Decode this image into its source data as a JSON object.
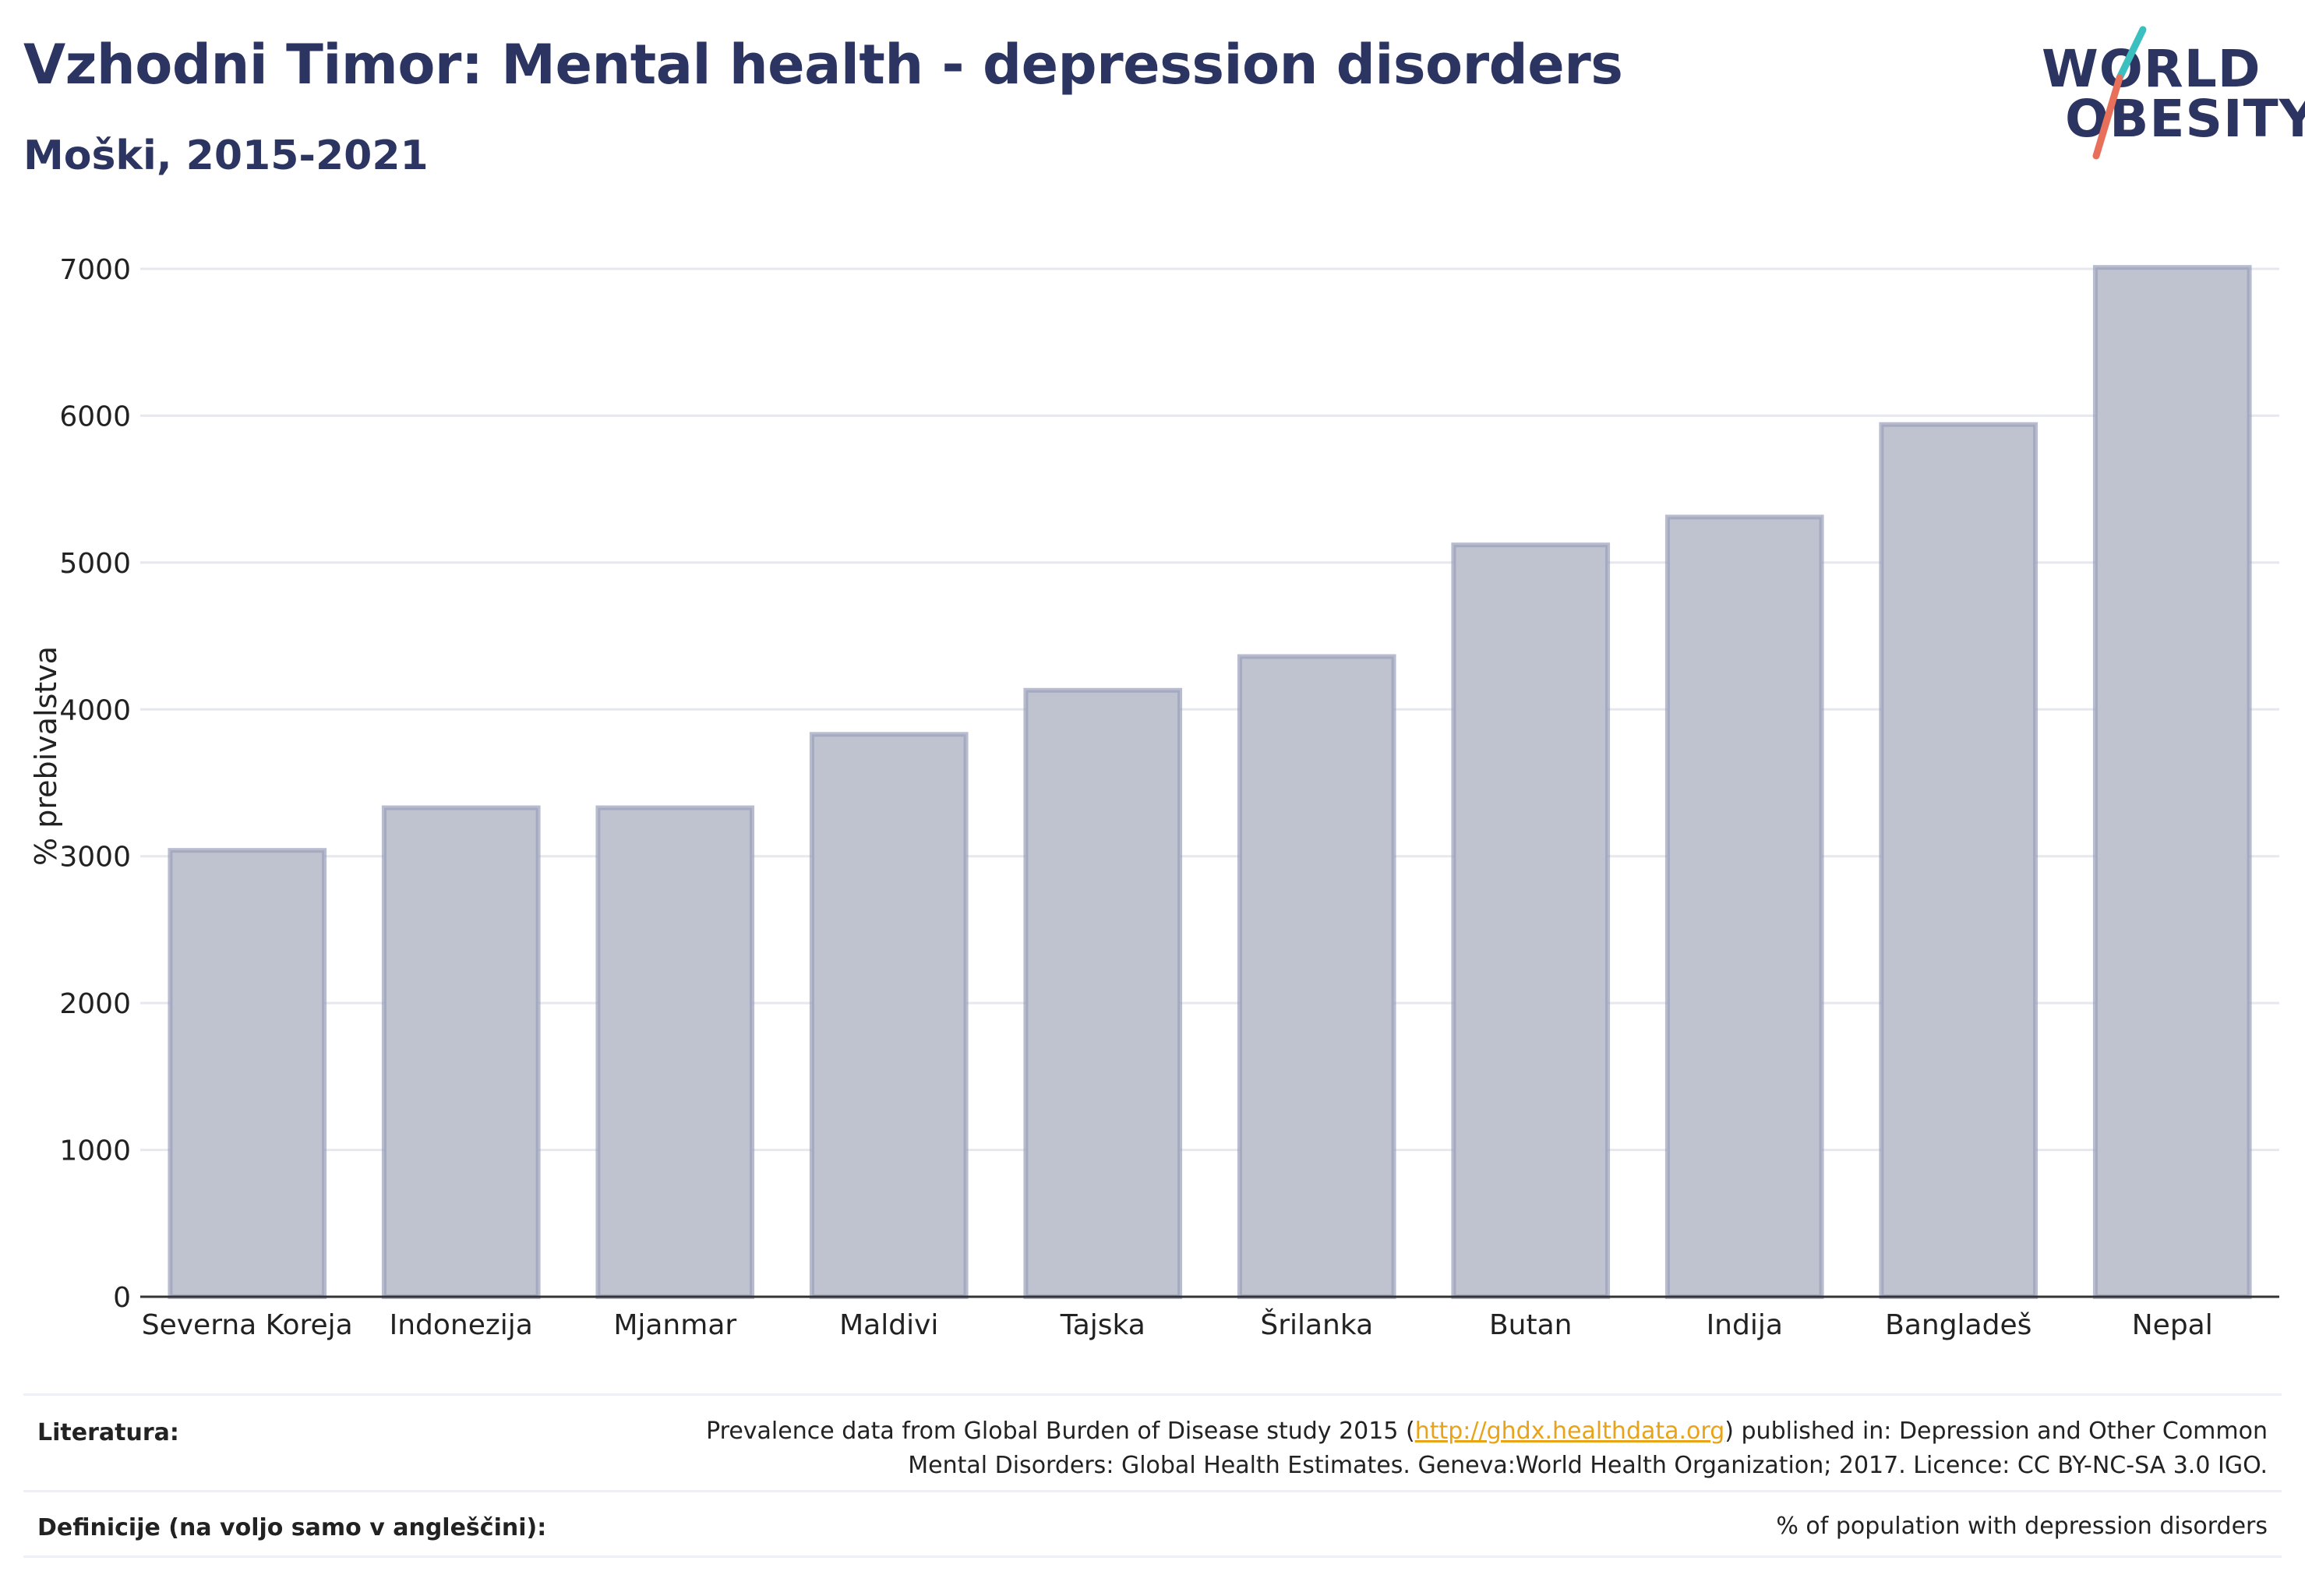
{
  "header": {
    "title": "Vzhodni Timor: Mental health - depression disorders",
    "subtitle": "Moški, 2015-2021"
  },
  "logo": {
    "line1": "WORLD",
    "line2": "OBESITY",
    "accent_colors": [
      "#3cbfbf",
      "#e8705a"
    ]
  },
  "chart_data": {
    "type": "bar",
    "categories": [
      "Severna Koreja",
      "Indonezija",
      "Mjanmar",
      "Maldivi",
      "Tajska",
      "Šrilanka",
      "Butan",
      "Indija",
      "Bangladeš",
      "Nepal"
    ],
    "values": [
      3040,
      3330,
      3330,
      3830,
      4130,
      4360,
      5120,
      5310,
      5940,
      7010
    ],
    "ylabel": "% prebivalstva",
    "xlabel": "",
    "ylim": [
      0,
      7000
    ],
    "yticks": [
      0,
      1000,
      2000,
      3000,
      4000,
      5000,
      6000,
      7000
    ],
    "grid": true,
    "bar_fill": "#bfc2cf",
    "bar_stroke": "#9aa0bb"
  },
  "footer": {
    "sources_label": "Literatura:",
    "sources_text_before": "Prevalence data from Global Burden of Disease study 2015 (",
    "sources_link": "http://ghdx.healthdata.org",
    "sources_text_after": ") published in: Depression and Other Common",
    "sources_line2": "Mental Disorders: Global Health Estimates. Geneva:World Health Organization; 2017. Licence: CC BY-NC-SA 3.0 IGO.",
    "definitions_label": "Definicije (na voljo samo v angleščini):",
    "definitions_text": "% of population with depression disorders"
  }
}
